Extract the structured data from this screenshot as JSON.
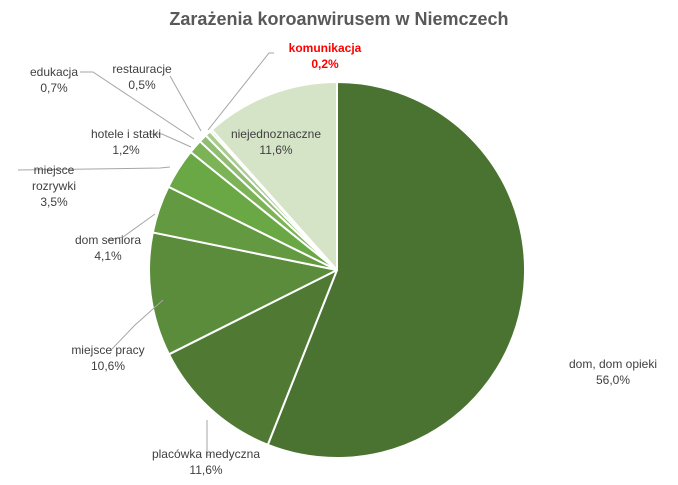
{
  "chart_data": {
    "type": "pie",
    "title": "Zarażenia koroanwirusem w Niemczech",
    "slices": [
      {
        "label": "dom, dom opieki",
        "value": 56.0,
        "value_label": "56,0%",
        "color": "#4a7230"
      },
      {
        "label": "placówka medyczna",
        "value": 11.6,
        "value_label": "11,6%",
        "color": "#507a34"
      },
      {
        "label": "miejsce pracy",
        "value": 10.6,
        "value_label": "10,6%",
        "color": "#5b8c3c"
      },
      {
        "label": "dom seniora",
        "value": 4.1,
        "value_label": "4,1%",
        "color": "#639a41"
      },
      {
        "label": "miejsce rozrywki",
        "value": 3.5,
        "value_label": "3,5%",
        "color": "#6aa846"
      },
      {
        "label": "hotele i statki",
        "value": 1.2,
        "value_label": "1,2%",
        "color": "#7cb356"
      },
      {
        "label": "edukacja",
        "value": 0.7,
        "value_label": "0,7%",
        "color": "#91bd72"
      },
      {
        "label": "restauracje",
        "value": 0.5,
        "value_label": "0,5%",
        "color": "#a9cb90"
      },
      {
        "label": "komunikacja",
        "value": 0.2,
        "value_label": "0,2%",
        "color": "#bfd8ab",
        "highlight": true
      },
      {
        "label": "niejednoznaczne",
        "value": 11.6,
        "value_label": "11,6%",
        "color": "#d5e3c7"
      }
    ],
    "highlight_color": "#ff0000"
  }
}
